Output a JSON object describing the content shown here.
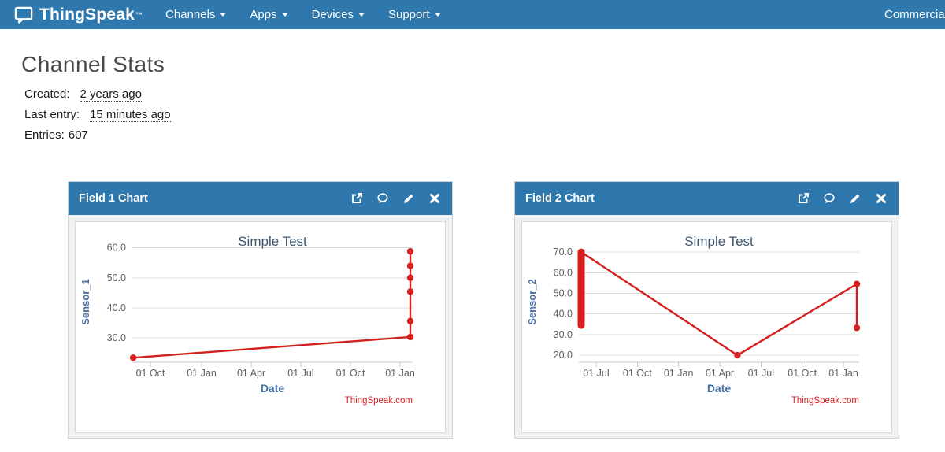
{
  "navbar": {
    "brand": "ThingSpeak",
    "brand_tm": "™",
    "items": [
      {
        "label": "Channels"
      },
      {
        "label": "Apps"
      },
      {
        "label": "Devices"
      },
      {
        "label": "Support"
      }
    ],
    "right_item": "Commercial Use"
  },
  "page": {
    "title": "Channel Stats",
    "meta": [
      {
        "label": "Created:",
        "value": "2 years ago"
      },
      {
        "label": "Last entry:",
        "value": "15 minutes ago"
      },
      {
        "label": "Entries:",
        "value": "607"
      }
    ]
  },
  "panels": [
    {
      "title": "Field 1 Chart"
    },
    {
      "title": "Field 2 Chart"
    }
  ],
  "colors": {
    "navbar_bg": "#2e78ae",
    "panel_header_bg": "#2e78ae",
    "series_red": "#d62020",
    "chart_title": "#3e576f",
    "axis_title_blue": "#4572a7",
    "tick_text": "#606060",
    "gridline": "#dddddd",
    "axis_line": "#c8c8c8",
    "credits_red": "#d62020"
  },
  "chart_data": [
    {
      "type": "line",
      "title": "Simple Test",
      "xlabel": "Date",
      "ylabel": "Sensor_1",
      "credits": "ThingSpeak.com",
      "series_color": "#d62020",
      "grid": true,
      "legend": "none",
      "ylim": [
        21.9,
        62.0
      ],
      "yticks": [
        {
          "value": 30,
          "label": "30.0"
        },
        {
          "value": 40,
          "label": "40.0"
        },
        {
          "value": 50,
          "label": "50.0"
        },
        {
          "value": 60,
          "label": "60.0"
        }
      ],
      "xticks": [
        {
          "xf": 0.0646,
          "label": "01 Oct"
        },
        {
          "xf": 0.2472,
          "label": "01 Jan"
        },
        {
          "xf": 0.4242,
          "label": "01 Apr"
        },
        {
          "xf": 0.6011,
          "label": "01 Jul"
        },
        {
          "xf": 0.7781,
          "label": "01 Oct"
        },
        {
          "xf": 0.9551,
          "label": "01 Jan"
        }
      ],
      "points": [
        {
          "xf": 0.003,
          "y": 23.4,
          "x_approx": "~mid Sep (before first 01 Oct tick)"
        },
        {
          "xf": 0.9916,
          "y": 30.3,
          "x_approx": "~mid Jan (after last 01 Jan tick)"
        },
        {
          "xf": 0.9916,
          "y": 35.6,
          "x_approx": "~mid Jan"
        },
        {
          "xf": 0.9916,
          "y": 45.4,
          "x_approx": "~mid Jan"
        },
        {
          "xf": 0.9916,
          "y": 50.0,
          "x_approx": "~mid Jan"
        },
        {
          "xf": 0.9916,
          "y": 54.0,
          "x_approx": "~mid Jan"
        },
        {
          "xf": 0.9916,
          "y": 58.8,
          "x_approx": "~mid Jan"
        }
      ]
    },
    {
      "type": "line",
      "title": "Simple Test",
      "xlabel": "Date",
      "ylabel": "Sensor_2",
      "credits": "ThingSpeak.com",
      "series_color": "#d62020",
      "grid": true,
      "legend": "none",
      "ylim": [
        16.6,
        75.0
      ],
      "yticks": [
        {
          "value": 20,
          "label": "20.0"
        },
        {
          "value": 30,
          "label": "30.0"
        },
        {
          "value": 40,
          "label": "40.0"
        },
        {
          "value": 50,
          "label": "50.0"
        },
        {
          "value": 60,
          "label": "60.0"
        },
        {
          "value": 70,
          "label": "70.0"
        }
      ],
      "xticks": [
        {
          "xf": 0.0616,
          "label": "01 Jul"
        },
        {
          "xf": 0.2087,
          "label": "01 Oct"
        },
        {
          "xf": 0.3557,
          "label": "01 Jan"
        },
        {
          "xf": 0.5028,
          "label": "01 Apr"
        },
        {
          "xf": 0.6499,
          "label": "01 Jul"
        },
        {
          "xf": 0.7969,
          "label": "01 Oct"
        },
        {
          "xf": 0.944,
          "label": "01 Jan"
        }
      ],
      "cluster": {
        "xf": 0.0084,
        "y_min": 34.5,
        "y_max": 70.0,
        "note": "dense vertical stack of overlapping points at ~early Jun between 34.5 and 70"
      },
      "points": [
        {
          "xf": 0.0084,
          "y": 70.0,
          "marker": false,
          "x_approx": "~early Jun (before first 01 Jul tick)"
        },
        {
          "xf": 0.5658,
          "y": 20.0,
          "x_approx": "~early May"
        },
        {
          "xf": 0.9916,
          "y": 54.5,
          "x_approx": "~mid Jan (after last 01 Jan tick)"
        },
        {
          "xf": 0.9916,
          "y": 33.3,
          "x_approx": "~mid Jan"
        }
      ]
    }
  ]
}
